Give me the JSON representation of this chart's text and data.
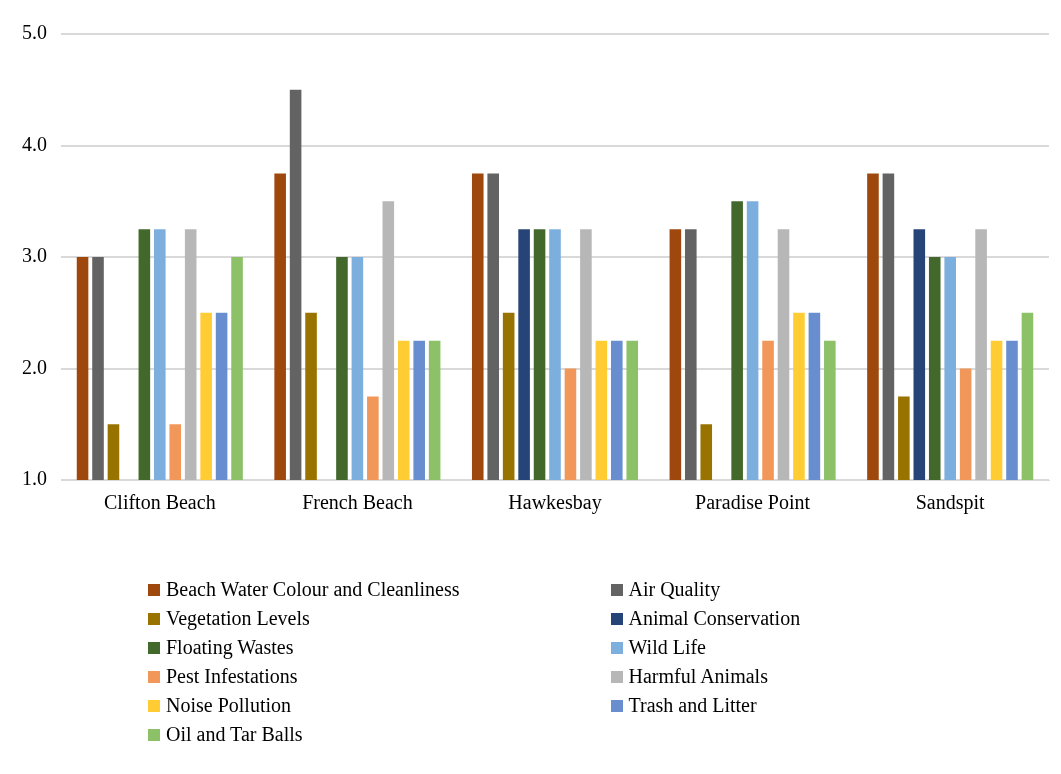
{
  "chart_data": {
    "type": "bar",
    "categories": [
      "Clifton Beach",
      "French Beach",
      "Hawkesbay",
      "Paradise Point",
      "Sandspit"
    ],
    "series": [
      {
        "name": "Beach Water Colour and Cleanliness",
        "color": "#9e480e",
        "values": [
          3.0,
          3.75,
          3.75,
          3.25,
          3.75
        ]
      },
      {
        "name": "Air Quality",
        "color": "#636363",
        "values": [
          3.0,
          4.5,
          3.75,
          3.25,
          3.75
        ]
      },
      {
        "name": "Vegetation Levels",
        "color": "#997300",
        "values": [
          1.5,
          2.5,
          2.5,
          1.5,
          1.75
        ]
      },
      {
        "name": "Animal Conservation",
        "color": "#264478",
        "values": [
          null,
          null,
          3.25,
          null,
          3.25
        ]
      },
      {
        "name": "Floating Wastes",
        "color": "#43682b",
        "values": [
          3.25,
          3.0,
          3.25,
          3.5,
          3.0
        ]
      },
      {
        "name": "Wild Life",
        "color": "#7cafdd",
        "values": [
          3.25,
          3.0,
          3.25,
          3.5,
          3.0
        ]
      },
      {
        "name": "Pest Infestations",
        "color": "#f1975a",
        "values": [
          1.5,
          1.75,
          2.0,
          2.25,
          2.0
        ]
      },
      {
        "name": "Harmful Animals",
        "color": "#b7b7b7",
        "values": [
          3.25,
          3.5,
          3.25,
          3.25,
          3.25
        ]
      },
      {
        "name": "Noise Pollution",
        "color": "#ffcd33",
        "values": [
          2.5,
          2.25,
          2.25,
          2.5,
          2.25
        ]
      },
      {
        "name": "Trash and Litter",
        "color": "#698ed0",
        "values": [
          2.5,
          2.25,
          2.25,
          2.5,
          2.25
        ]
      },
      {
        "name": "Oil and Tar Balls",
        "color": "#8cc168",
        "values": [
          3.0,
          2.25,
          2.25,
          2.25,
          2.5
        ]
      }
    ],
    "ylim": [
      1,
      5
    ],
    "yticks": [
      {
        "value": 1,
        "label": "1.0"
      },
      {
        "value": 2,
        "label": "2.0"
      },
      {
        "value": 3,
        "label": "3.0"
      },
      {
        "value": 4,
        "label": "4.0"
      },
      {
        "value": 5,
        "label": "5.0"
      }
    ],
    "grid": "y",
    "legend": "bottom"
  }
}
